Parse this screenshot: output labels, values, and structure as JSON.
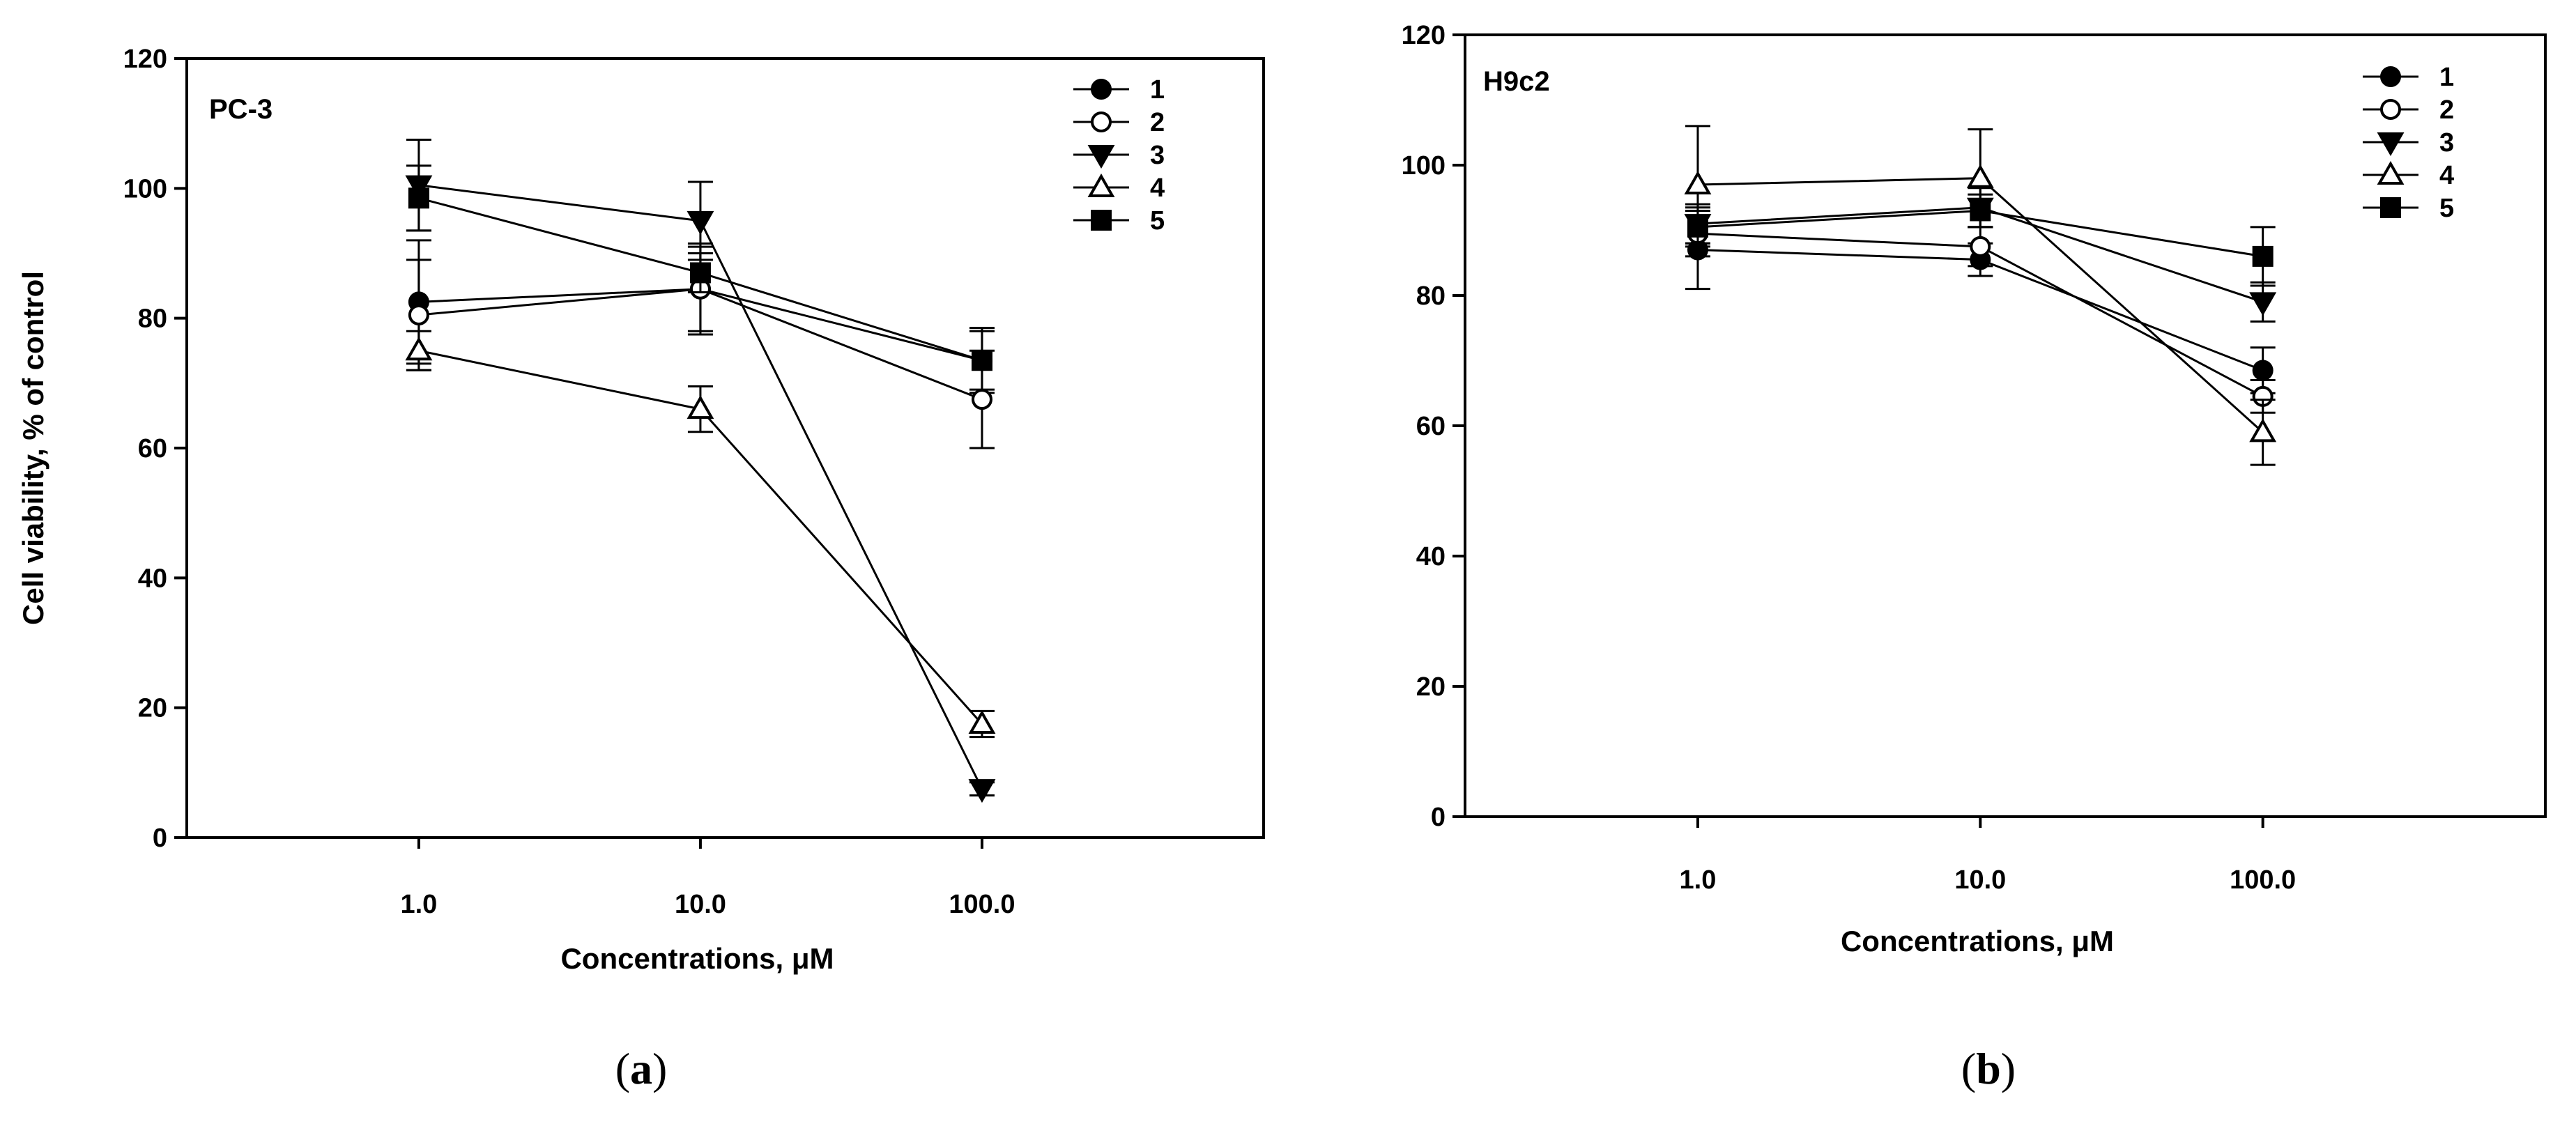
{
  "chart_data": [
    {
      "type": "line",
      "panel_title": "PC-3",
      "caption": {
        "open": "(",
        "letter": "a",
        "close": ")"
      },
      "xlabel": "Concentrations, μM",
      "ylabel": "Cell viability, % of control",
      "xscale": "log",
      "x": [
        1.0,
        10.0,
        100.0
      ],
      "x_tick_labels": [
        "1.0",
        "10.0",
        "100.0"
      ],
      "xlim": [
        0.15,
        1000
      ],
      "ylim": [
        0,
        120
      ],
      "y_ticks": [
        0,
        20,
        40,
        60,
        80,
        100,
        120
      ],
      "legend_position": "top-right",
      "series": [
        {
          "name": "1",
          "marker": "circle-filled",
          "values": [
            82.5,
            84.5,
            73.5
          ],
          "errors": [
            9.5,
            6.5,
            5.0
          ]
        },
        {
          "name": "2",
          "marker": "circle-open",
          "values": [
            80.5,
            84.5,
            67.5
          ],
          "errors": [
            8.5,
            7.0,
            7.5
          ]
        },
        {
          "name": "3",
          "marker": "triangle-down-filled",
          "values": [
            100.5,
            95.0,
            7.5
          ],
          "errors": [
            7.0,
            6.0,
            1.0
          ]
        },
        {
          "name": "4",
          "marker": "triangle-up-open",
          "values": [
            75.0,
            66.0,
            17.5
          ],
          "errors": [
            3.0,
            3.5,
            2.0
          ]
        },
        {
          "name": "5",
          "marker": "square-filled",
          "values": [
            98.5,
            87.0,
            73.5
          ],
          "errors": [
            5.0,
            3.0,
            4.5
          ]
        }
      ]
    },
    {
      "type": "line",
      "panel_title": "H9c2",
      "caption": {
        "open": "(",
        "letter": "b",
        "close": ")"
      },
      "xlabel": "Concentrations, μM",
      "ylabel": "",
      "xscale": "log",
      "x": [
        1.0,
        10.0,
        100.0
      ],
      "x_tick_labels": [
        "1.0",
        "10.0",
        "100.0"
      ],
      "xlim": [
        0.15,
        1000
      ],
      "ylim": [
        0,
        120
      ],
      "y_ticks": [
        0,
        20,
        40,
        60,
        80,
        100,
        120
      ],
      "legend_position": "top-right",
      "series": [
        {
          "name": "1",
          "marker": "circle-filled",
          "values": [
            87.0,
            85.5,
            68.5
          ],
          "errors": [
            6.0,
            2.5,
            3.5
          ]
        },
        {
          "name": "2",
          "marker": "circle-open",
          "values": [
            89.5,
            87.5,
            64.5
          ],
          "errors": [
            3.5,
            3.0,
            2.5
          ]
        },
        {
          "name": "3",
          "marker": "triangle-down-filled",
          "values": [
            91.0,
            93.5,
            79.0
          ],
          "errors": [
            3.0,
            3.0,
            3.0
          ]
        },
        {
          "name": "4",
          "marker": "triangle-up-open",
          "values": [
            97.0,
            98.0,
            59.0
          ],
          "errors": [
            9.0,
            7.5,
            5.0
          ]
        },
        {
          "name": "5",
          "marker": "square-filled",
          "values": [
            90.5,
            93.0,
            86.0
          ],
          "errors": [
            3.0,
            2.5,
            4.5
          ]
        }
      ]
    }
  ]
}
